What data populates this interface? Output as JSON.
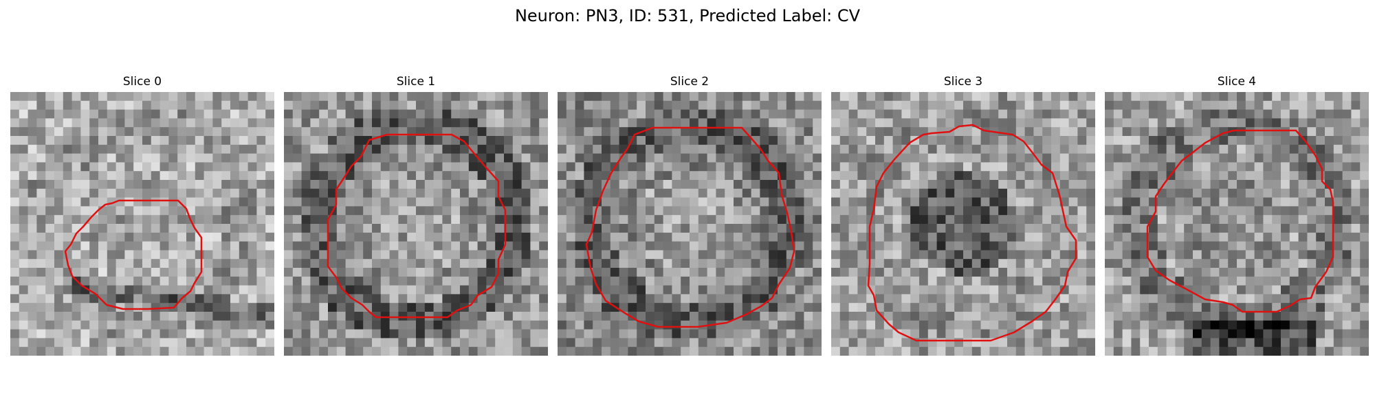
{
  "figure": {
    "title": "Neuron: PN3, ID: 531, Predicted Label: CV"
  },
  "panels": [
    {
      "title": "Slice 0"
    },
    {
      "title": "Slice 1"
    },
    {
      "title": "Slice 2"
    },
    {
      "title": "Slice 3"
    },
    {
      "title": "Slice 4"
    }
  ],
  "colors": {
    "contour": "#e01010",
    "background": "#ffffff"
  },
  "colormap": "gray"
}
